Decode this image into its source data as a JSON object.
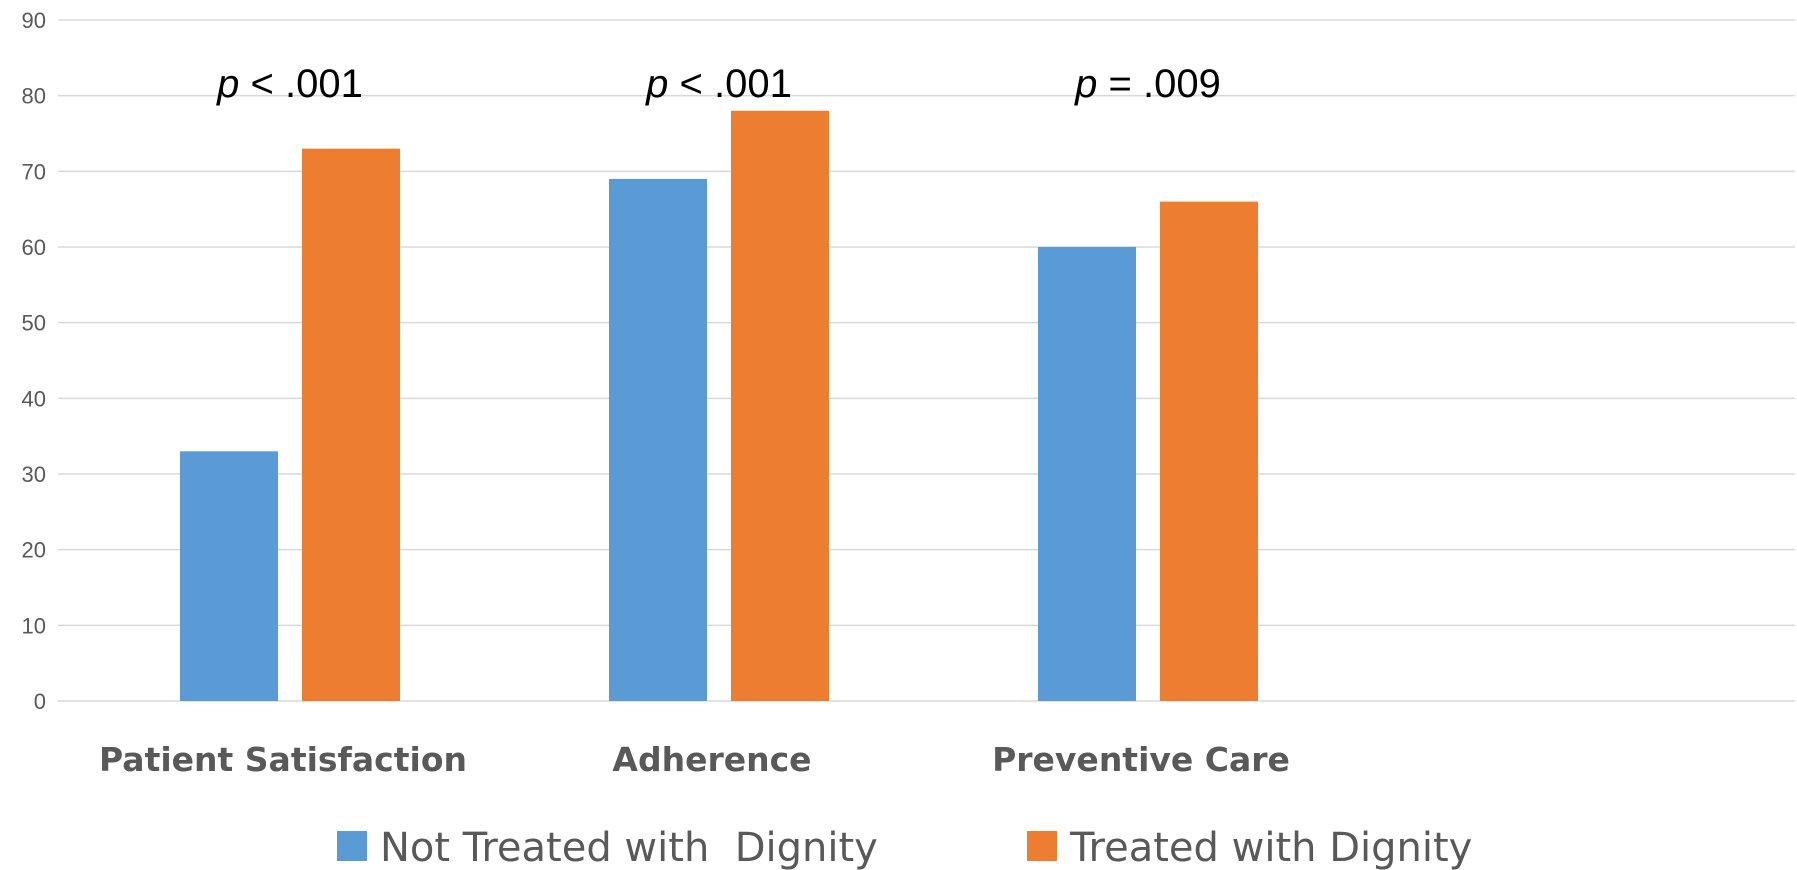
{
  "chart_data": {
    "type": "bar",
    "categories": [
      "Patient Satisfaction",
      "Adherence",
      "Preventive Care"
    ],
    "series": [
      {
        "name": "Not Treated with  Dignity",
        "color": "#5b9bd5",
        "values": [
          33,
          69,
          60
        ]
      },
      {
        "name": "Treated with Dignity",
        "color": "#ed7d31",
        "values": [
          73,
          78,
          66
        ]
      }
    ],
    "annotations": [
      {
        "category": "Patient Satisfaction",
        "p_symbol": "p",
        "text": " < .001"
      },
      {
        "category": "Adherence",
        "p_symbol": "p",
        "text": " < .001"
      },
      {
        "category": "Preventive Care",
        "p_symbol": "p",
        "text": " = .009"
      }
    ],
    "y_ticks": [
      "0",
      "10",
      "20",
      "30",
      "40",
      "50",
      "60",
      "70",
      "80",
      "90"
    ],
    "ylim": [
      0,
      90
    ],
    "grid": true,
    "legend_position": "bottom",
    "gridline_color": "#d9d9d9",
    "text_color": "#595959"
  }
}
